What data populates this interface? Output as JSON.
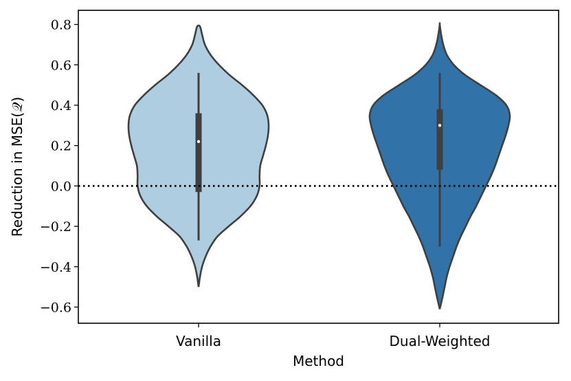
{
  "chart_data": {
    "type": "violin",
    "xlabel": "Method",
    "ylabel": "Reduction in MSE(𝒬)",
    "ylim": [
      -0.68,
      0.87
    ],
    "yticks": [
      -0.6,
      -0.4,
      -0.2,
      0.0,
      0.2,
      0.4,
      0.6,
      0.8
    ],
    "ytick_labels": [
      "−0.6",
      "−0.4",
      "−0.2",
      "0.0",
      "0.2",
      "0.4",
      "0.6",
      "0.8"
    ],
    "reference_line": {
      "y": 0.0,
      "style": "dotted"
    },
    "grid": false,
    "categories": [
      "Vanilla",
      "Dual-Weighted"
    ],
    "series": [
      {
        "category": "Vanilla",
        "color": "#aecde1",
        "min": -0.27,
        "q1": -0.03,
        "median": 0.22,
        "q3": 0.36,
        "max": 0.56,
        "kde_min": -0.5,
        "kde_max": 0.79,
        "profile": [
          [
            -0.5,
            0.0
          ],
          [
            -0.45,
            0.02
          ],
          [
            -0.4,
            0.05
          ],
          [
            -0.35,
            0.1
          ],
          [
            -0.3,
            0.17
          ],
          [
            -0.25,
            0.27
          ],
          [
            -0.2,
            0.43
          ],
          [
            -0.15,
            0.6
          ],
          [
            -0.1,
            0.74
          ],
          [
            -0.05,
            0.83
          ],
          [
            0.0,
            0.87
          ],
          [
            0.05,
            0.87
          ],
          [
            0.1,
            0.88
          ],
          [
            0.15,
            0.92
          ],
          [
            0.2,
            0.96
          ],
          [
            0.25,
            0.99
          ],
          [
            0.3,
            1.0
          ],
          [
            0.35,
            0.98
          ],
          [
            0.4,
            0.91
          ],
          [
            0.45,
            0.78
          ],
          [
            0.5,
            0.62
          ],
          [
            0.55,
            0.44
          ],
          [
            0.6,
            0.29
          ],
          [
            0.65,
            0.17
          ],
          [
            0.7,
            0.09
          ],
          [
            0.75,
            0.05
          ],
          [
            0.79,
            0.02
          ]
        ]
      },
      {
        "category": "Dual-Weighted",
        "color": "#3173a8",
        "min": -0.3,
        "q1": 0.08,
        "median": 0.3,
        "q3": 0.38,
        "max": 0.56,
        "kde_min": -0.61,
        "kde_max": 0.8,
        "profile": [
          [
            -0.61,
            0.0
          ],
          [
            -0.55,
            0.04
          ],
          [
            -0.5,
            0.07
          ],
          [
            -0.45,
            0.1
          ],
          [
            -0.4,
            0.14
          ],
          [
            -0.35,
            0.19
          ],
          [
            -0.3,
            0.24
          ],
          [
            -0.25,
            0.3
          ],
          [
            -0.2,
            0.37
          ],
          [
            -0.15,
            0.44
          ],
          [
            -0.1,
            0.52
          ],
          [
            -0.05,
            0.59
          ],
          [
            0.0,
            0.66
          ],
          [
            0.05,
            0.73
          ],
          [
            0.1,
            0.79
          ],
          [
            0.15,
            0.84
          ],
          [
            0.2,
            0.89
          ],
          [
            0.25,
            0.94
          ],
          [
            0.3,
            0.98
          ],
          [
            0.35,
            1.0
          ],
          [
            0.4,
            0.95
          ],
          [
            0.45,
            0.8
          ],
          [
            0.5,
            0.58
          ],
          [
            0.55,
            0.36
          ],
          [
            0.6,
            0.2
          ],
          [
            0.65,
            0.1
          ],
          [
            0.7,
            0.05
          ],
          [
            0.75,
            0.02
          ],
          [
            0.8,
            0.0
          ]
        ]
      }
    ]
  }
}
